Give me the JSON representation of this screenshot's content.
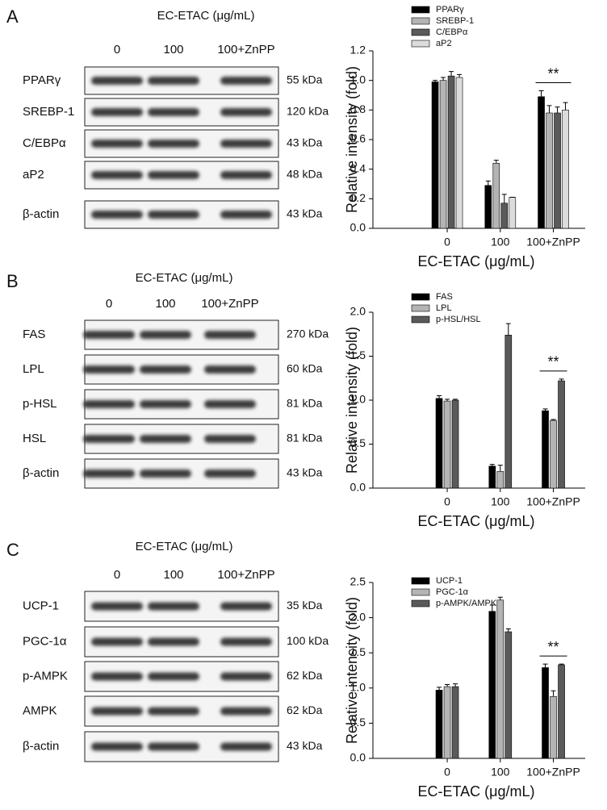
{
  "blots": [
    {
      "letter": "A",
      "title": "EC-ETAC (μg/mL)",
      "lanes": [
        "0",
        "100",
        "100+ZnPP"
      ],
      "rows": [
        {
          "label": "PPARγ",
          "kda": "55 kDa"
        },
        {
          "label": "SREBP-1",
          "kda": "120 kDa"
        },
        {
          "label": "C/EBPα",
          "kda": "43 kDa"
        },
        {
          "label": "aP2",
          "kda": "48 kDa"
        },
        {
          "label": "β-actin",
          "kda": "43 kDa"
        }
      ]
    },
    {
      "letter": "B",
      "title": "EC-ETAC (μg/mL)",
      "lanes": [
        "0",
        "100",
        "100+ZnPP"
      ],
      "rows": [
        {
          "label": "FAS",
          "kda": "270 kDa"
        },
        {
          "label": "LPL",
          "kda": "60 kDa"
        },
        {
          "label": "p-HSL",
          "kda": "81 kDa"
        },
        {
          "label": "HSL",
          "kda": "81 kDa"
        },
        {
          "label": "β-actin",
          "kda": "43 kDa"
        }
      ]
    },
    {
      "letter": "C",
      "title": "EC-ETAC (μg/mL)",
      "lanes": [
        "0",
        "100",
        "100+ZnPP"
      ],
      "rows": [
        {
          "label": "UCP-1",
          "kda": "35 kDa"
        },
        {
          "label": "PGC-1α",
          "kda": "100 kDa"
        },
        {
          "label": "p-AMPK",
          "kda": "62 kDa"
        },
        {
          "label": "AMPK",
          "kda": "62 kDa"
        },
        {
          "label": "β-actin",
          "kda": "43 kDa"
        }
      ]
    }
  ],
  "chart_data": [
    {
      "type": "bar",
      "x_label": "EC-ETAC (μg/mL)",
      "y_label": "Relative intensity (fold)",
      "annotation": "**",
      "categories": [
        "0",
        "100",
        "100+ZnPP"
      ],
      "ylim": [
        0,
        1.2
      ],
      "yticks": [
        {
          "value": 0,
          "label": "0.0"
        },
        0.2,
        0.4,
        0.6,
        0.8,
        {
          "value": 1,
          "label": "1.0"
        },
        1.2
      ],
      "series": [
        {
          "name": "PPARγ",
          "color": "#000000",
          "values": [
            0.99,
            0.29,
            0.89
          ],
          "errors": [
            0.01,
            0.03,
            0.04
          ]
        },
        {
          "name": "SREBP-1",
          "color": "#b4b4b4",
          "values": [
            1.0,
            0.44,
            0.78
          ],
          "errors": [
            0.02,
            0.02,
            0.05
          ]
        },
        {
          "name": "C/EBPα",
          "color": "#5a5a5a",
          "values": [
            1.03,
            0.17,
            0.78
          ],
          "errors": [
            0.03,
            0.06,
            0.04
          ]
        },
        {
          "name": "aP2",
          "color": "#dcdcdc",
          "values": [
            1.02,
            0.21,
            0.8
          ],
          "errors": [
            0.02,
            0,
            0.05
          ]
        }
      ]
    },
    {
      "type": "bar",
      "x_label": "EC-ETAC (μg/mL)",
      "y_label": "Relative intensity (fold)",
      "annotation": "**",
      "categories": [
        "0",
        "100",
        "100+ZnPP"
      ],
      "ylim": [
        0,
        2
      ],
      "yticks": [
        {
          "value": 0,
          "label": "0.0"
        },
        0.5,
        {
          "value": 1,
          "label": "1.0"
        },
        1.5,
        {
          "value": 2,
          "label": "2.0"
        }
      ],
      "series": [
        {
          "name": "FAS",
          "color": "#000000",
          "values": [
            1.02,
            0.25,
            0.88
          ],
          "errors": [
            0.03,
            0.02,
            0.02
          ]
        },
        {
          "name": "LPL",
          "color": "#b4b4b4",
          "values": [
            0.99,
            0.19,
            0.77
          ],
          "errors": [
            0.02,
            0.07,
            0.01
          ]
        },
        {
          "name": "p-HSL/HSL",
          "color": "#5a5a5a",
          "values": [
            1.0,
            1.74,
            1.22
          ],
          "errors": [
            0.01,
            0.13,
            0.02
          ]
        }
      ]
    },
    {
      "type": "bar",
      "x_label": "EC-ETAC (μg/mL)",
      "y_label": "Relative intensity (fold)",
      "annotation": "**",
      "categories": [
        "0",
        "100",
        "100+ZnPP"
      ],
      "ylim": [
        0,
        2.5
      ],
      "yticks": [
        {
          "value": 0,
          "label": "0.0"
        },
        0.5,
        {
          "value": 1,
          "label": "1.0"
        },
        1.5,
        {
          "value": 2,
          "label": "2.0"
        },
        2.5
      ],
      "series": [
        {
          "name": "UCP-1",
          "color": "#000000",
          "values": [
            0.97,
            2.09,
            1.29
          ],
          "errors": [
            0.04,
            0.09,
            0.05
          ]
        },
        {
          "name": "PGC-1α",
          "color": "#b4b4b4",
          "values": [
            1.02,
            2.25,
            0.88
          ],
          "errors": [
            0.03,
            0.04,
            0.08
          ]
        },
        {
          "name": "p-AMPK/AMPK",
          "color": "#5a5a5a",
          "values": [
            1.02,
            1.8,
            1.33
          ],
          "errors": [
            0.04,
            0.04,
            0.01
          ]
        }
      ]
    }
  ]
}
